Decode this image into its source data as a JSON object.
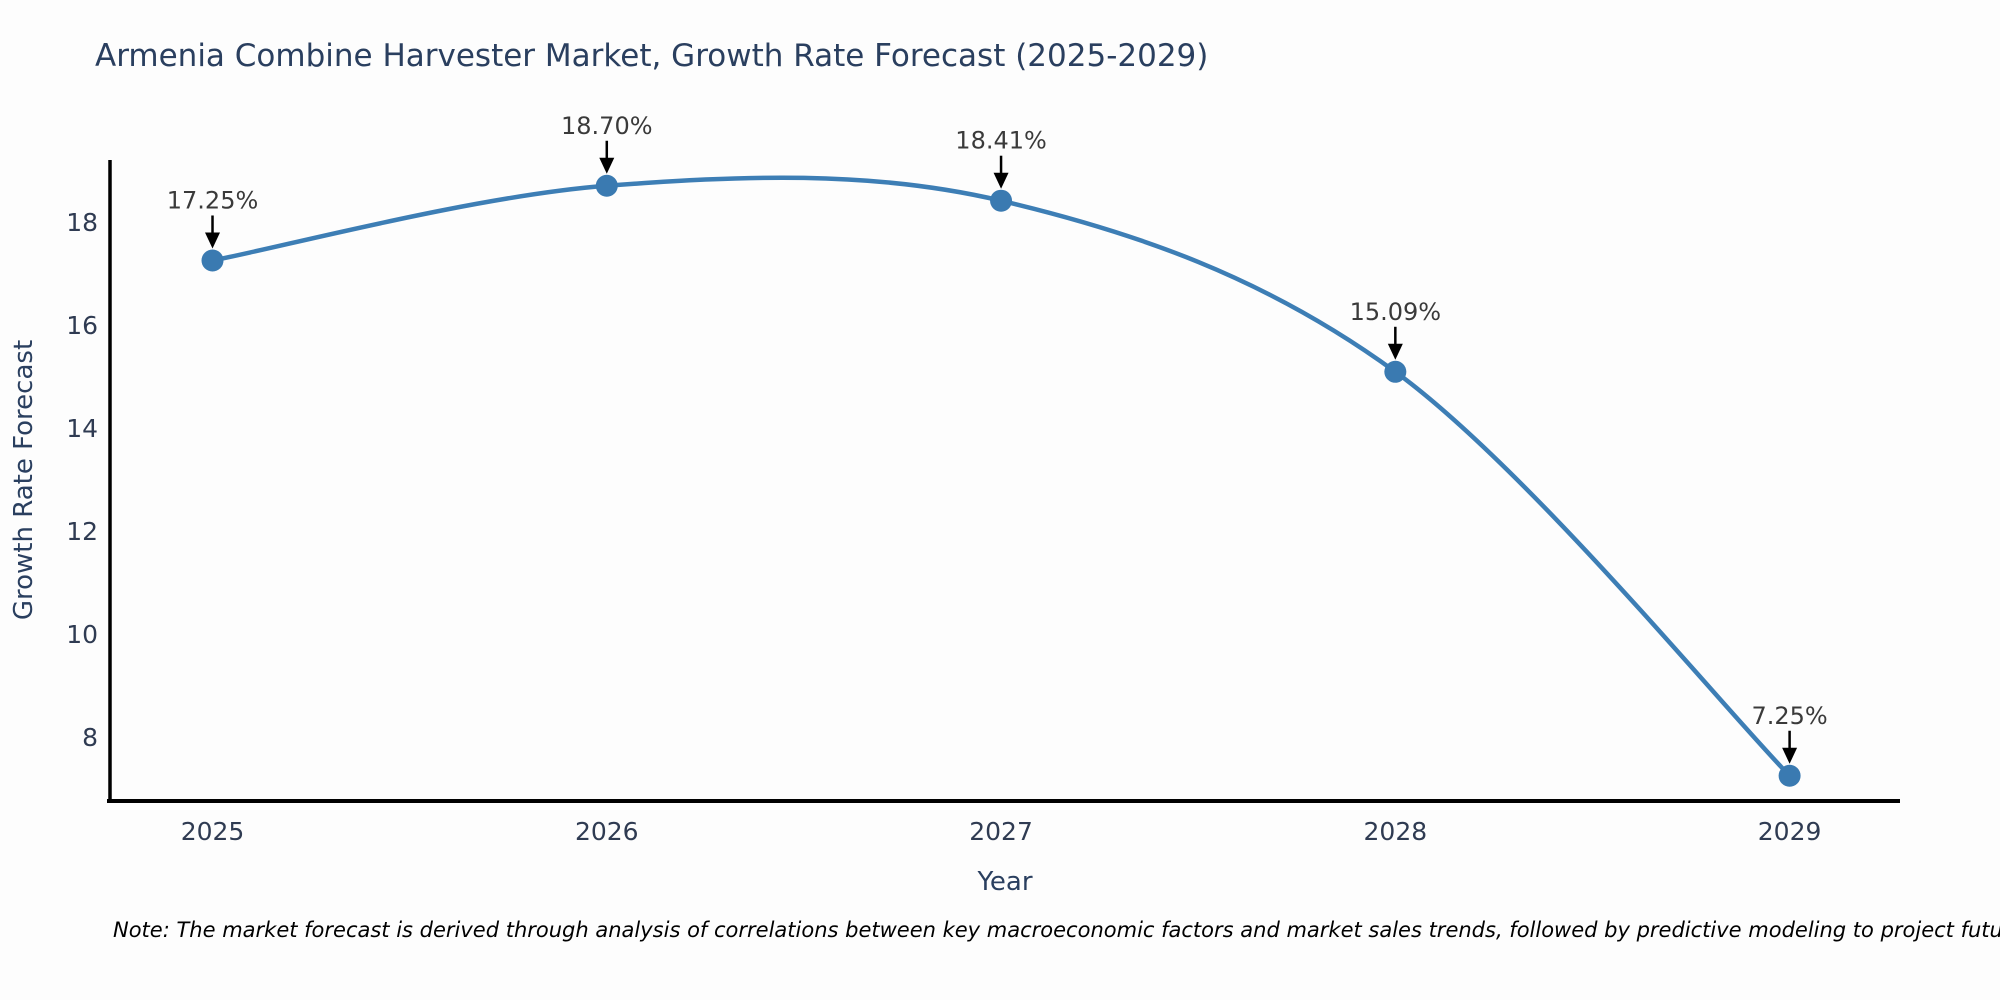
{
  "title": "Armenia Combine Harvester Market, Growth Rate Forecast (2025-2029)",
  "note": "Note: The market forecast is derived through analysis of correlations between key macroeconomic factors and market sales trends, followed by predictive modeling to project future sales",
  "chart_data": {
    "type": "line",
    "curve": "spline",
    "title": "Armenia Combine Harvester Market, Growth Rate Forecast (2025-2029)",
    "xlabel": "Year",
    "ylabel": "Growth Rate Forecast",
    "x": [
      2025,
      2026,
      2027,
      2028,
      2029
    ],
    "series": [
      {
        "name": "Growth Rate Forecast",
        "values": [
          17.25,
          18.7,
          18.41,
          15.09,
          7.25
        ]
      }
    ],
    "point_labels": [
      "17.25%",
      "18.70%",
      "18.41%",
      "15.09%",
      "7.25%"
    ],
    "x_tick_labels": [
      "2025",
      "2026",
      "2027",
      "2028",
      "2029"
    ],
    "y_ticks": [
      8,
      10,
      12,
      14,
      16,
      18
    ],
    "xlim": [
      2024.74,
      2029.28
    ],
    "ylim": [
      6.76,
      19.2
    ],
    "grid": false,
    "legend_position": "none",
    "colors": {
      "line": "#3d7eb5",
      "marker": "#3a7ab1",
      "axis_line": "#000000",
      "tick_label": "#2f3b52",
      "axis_title": "#2a3f5f",
      "chart_title": "#2a3f5f",
      "data_label": "#3a3a3a",
      "annotation_arrow": "#000000",
      "background": "#fdfdfd"
    }
  }
}
